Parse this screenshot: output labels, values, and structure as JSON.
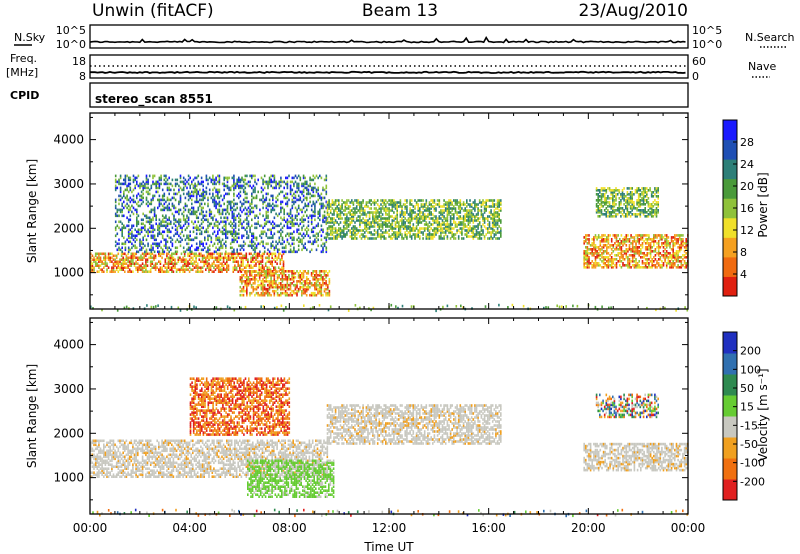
{
  "header": {
    "radar": "Unwin (fitACF)",
    "beam": "Beam 13",
    "date": "23/Aug/2010"
  },
  "strips": {
    "nsky_label": "N.Sky",
    "nsky_ticks": [
      "10^5",
      "10^0"
    ],
    "nsearch_label": "N.Search",
    "nsearch_ticks": [
      "10^5",
      "10^0"
    ],
    "freq_label": "Freq.",
    "freq_unit": "[MHz]",
    "freq_ticks": [
      "18",
      "8"
    ],
    "nave_label": "Nave",
    "nave_ticks": [
      "60",
      "0"
    ],
    "cpid_label": "CPID",
    "cpid_value": "stereo_scan 8551"
  },
  "chart_data": [
    {
      "type": "heatmap",
      "name": "power",
      "ylabel": "Slant Range [km]",
      "xlabel": "",
      "ylim": [
        180,
        4600
      ],
      "yticks": [
        "1000",
        "2000",
        "3000",
        "4000"
      ],
      "xlim_hours": [
        0,
        24
      ],
      "colorbar": {
        "label": "Power [dB]",
        "ticks": [
          "4",
          "8",
          "12",
          "16",
          "20",
          "24",
          "28"
        ],
        "range": [
          0,
          32
        ],
        "colors": [
          "#1a1aff",
          "#1f4fb4",
          "#2d7f78",
          "#4a9a3a",
          "#8fc23a",
          "#f0e02a",
          "#f5a020",
          "#f06a10",
          "#e02010"
        ]
      },
      "regions": [
        {
          "t0": 0.0,
          "t1": 7.8,
          "r0": 1050,
          "r1": 1500,
          "level": "high",
          "desc": "main backscatter band"
        },
        {
          "t0": 1.0,
          "t1": 9.5,
          "r0": 1500,
          "r1": 3250,
          "level": "low",
          "desc": "upper scatter"
        },
        {
          "t0": 6.0,
          "t1": 9.6,
          "r0": 520,
          "r1": 1100,
          "level": "high",
          "desc": "near range patch"
        },
        {
          "t0": 9.5,
          "t1": 16.5,
          "r0": 1800,
          "r1": 2700,
          "level": "mid",
          "desc": "mid range patch"
        },
        {
          "t0": 19.8,
          "t1": 24.0,
          "r0": 1150,
          "r1": 1900,
          "level": "high",
          "desc": "evening band"
        },
        {
          "t0": 20.3,
          "t1": 22.8,
          "r0": 2300,
          "r1": 2950,
          "level": "mid",
          "desc": "evening upper patch"
        }
      ]
    },
    {
      "type": "heatmap",
      "name": "velocity",
      "ylabel": "Slant Range [km]",
      "xlabel": "Time UT",
      "ylim": [
        180,
        4600
      ],
      "yticks": [
        "1000",
        "2000",
        "3000",
        "4000"
      ],
      "xticks": [
        "00:00",
        "04:00",
        "08:00",
        "12:00",
        "16:00",
        "20:00",
        "00:00"
      ],
      "xlim_hours": [
        0,
        24
      ],
      "colorbar": {
        "label": "Velocity [m s⁻¹]",
        "ticks": [
          "200",
          "100",
          "50",
          "15",
          "-15",
          "-50",
          "-100",
          "-200"
        ],
        "colors": [
          "#2030c0",
          "#3070b0",
          "#2e8a50",
          "#66cc33",
          "#c8c8c0",
          "#f0a020",
          "#f07010",
          "#e02020"
        ]
      },
      "regions": [
        {
          "t0": 0.0,
          "t1": 9.5,
          "r0": 1050,
          "r1": 1900,
          "level": "ground",
          "desc": "low velocity band"
        },
        {
          "t0": 9.5,
          "t1": 16.5,
          "r0": 1800,
          "r1": 2700,
          "level": "ground",
          "desc": "mid range low velocity"
        },
        {
          "t0": 6.3,
          "t1": 9.8,
          "r0": 600,
          "r1": 1450,
          "level": "positive",
          "desc": "green near range"
        },
        {
          "t0": 4.0,
          "t1": 8.0,
          "r0": 2000,
          "r1": 3300,
          "level": "negative",
          "desc": "orange upper patch"
        },
        {
          "t0": 19.8,
          "t1": 24.0,
          "r0": 1200,
          "r1": 1800,
          "level": "ground",
          "desc": "evening band"
        },
        {
          "t0": 20.3,
          "t1": 22.8,
          "r0": 2400,
          "r1": 2900,
          "level": "mixed",
          "desc": "evening mixed"
        }
      ]
    }
  ]
}
